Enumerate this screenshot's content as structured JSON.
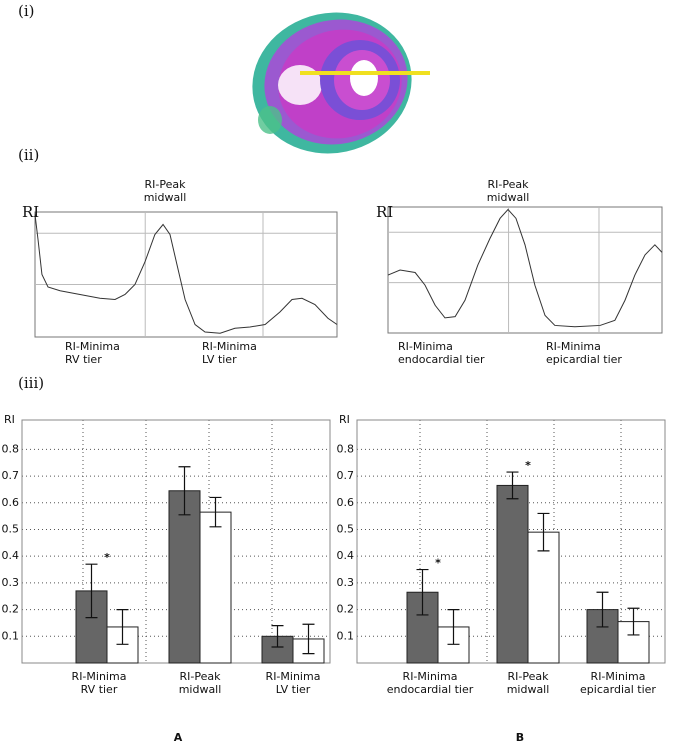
{
  "panels": [
    "(i)",
    "(ii)",
    "(iii)"
  ],
  "chart_data": [
    {
      "type": "line",
      "ylabel": "RI",
      "color": "#333333",
      "grid": true,
      "xlim": [
        0,
        100
      ],
      "ylim": [
        0,
        1
      ],
      "x": [
        0,
        1,
        2.3,
        4.3,
        8.3,
        14.9,
        21.5,
        26.5,
        29.8,
        33.1,
        36.4,
        39.7,
        42.4,
        44.7,
        47.0,
        49.7,
        53.0,
        56.3,
        61.3,
        66.2,
        71.2,
        76.2,
        81.1,
        85.1,
        88.4,
        92.7,
        97.0,
        100
      ],
      "values": [
        0.98,
        0.78,
        0.5,
        0.4,
        0.37,
        0.34,
        0.31,
        0.3,
        0.34,
        0.42,
        0.6,
        0.82,
        0.9,
        0.82,
        0.58,
        0.3,
        0.1,
        0.04,
        0.03,
        0.07,
        0.08,
        0.1,
        0.2,
        0.3,
        0.31,
        0.26,
        0.15,
        0.1
      ],
      "annotations": [
        [
          "RI-Peak",
          "midwall"
        ],
        [
          "RI-Minima",
          "RV tier"
        ],
        [
          "RI-Minima",
          "LV tier"
        ]
      ]
    },
    {
      "type": "line",
      "ylabel": "RI",
      "color": "#333333",
      "grid": true,
      "xlim": [
        0,
        100
      ],
      "ylim": [
        0,
        1
      ],
      "x": [
        0,
        4.4,
        9.9,
        13.5,
        17.2,
        20.8,
        24.5,
        28.1,
        32.8,
        37.2,
        40.9,
        43.8,
        46.7,
        50.0,
        53.6,
        57.3,
        60.9,
        68.2,
        77.4,
        82.8,
        86.5,
        90.1,
        93.8,
        97.4,
        100
      ],
      "values": [
        0.46,
        0.5,
        0.48,
        0.38,
        0.22,
        0.12,
        0.13,
        0.26,
        0.54,
        0.75,
        0.91,
        0.98,
        0.91,
        0.7,
        0.38,
        0.14,
        0.06,
        0.05,
        0.06,
        0.1,
        0.26,
        0.46,
        0.62,
        0.7,
        0.64
      ],
      "annotations": [
        [
          "RI-Peak",
          "midwall"
        ],
        [
          "RI-Minima",
          "endocardial tier"
        ],
        [
          "RI-Minima",
          "epicardial tier"
        ]
      ]
    },
    {
      "type": "bar",
      "title": "A",
      "ylabel": "RI",
      "grid": true,
      "ylim": [
        0,
        0.91
      ],
      "yticks": [
        0.1,
        0.2,
        0.3,
        0.4,
        0.5,
        0.6,
        0.7,
        0.8
      ],
      "categories": [
        [
          "RI-Minima",
          "RV tier"
        ],
        [
          "RI-Peak",
          "midwall"
        ],
        [
          "RI-Minima",
          "LV tier"
        ]
      ],
      "series": [
        {
          "color": "#666666",
          "values": [
            0.27,
            0.645,
            0.1
          ],
          "errors": [
            0.1,
            0.09,
            0.04
          ]
        },
        {
          "color": "#ffffff",
          "values": [
            0.135,
            0.565,
            0.09
          ],
          "errors": [
            0.065,
            0.055,
            0.055
          ]
        }
      ],
      "annotations": [
        "*"
      ]
    },
    {
      "type": "bar",
      "title": "B",
      "ylabel": "RI",
      "grid": true,
      "ylim": [
        0,
        0.91
      ],
      "yticks": [
        0.1,
        0.2,
        0.3,
        0.4,
        0.5,
        0.6,
        0.7,
        0.8
      ],
      "categories": [
        [
          "RI-Minima",
          "endocardial tier"
        ],
        [
          "RI-Peak",
          "midwall"
        ],
        [
          "RI-Minima",
          "epicardial tier"
        ]
      ],
      "series": [
        {
          "color": "#666666",
          "values": [
            0.265,
            0.665,
            0.2
          ],
          "errors": [
            0.085,
            0.05,
            0.065
          ]
        },
        {
          "color": "#ffffff",
          "values": [
            0.135,
            0.49,
            0.155
          ],
          "errors": [
            0.065,
            0.07,
            0.05
          ]
        }
      ],
      "annotations": [
        "*",
        "*"
      ]
    }
  ]
}
